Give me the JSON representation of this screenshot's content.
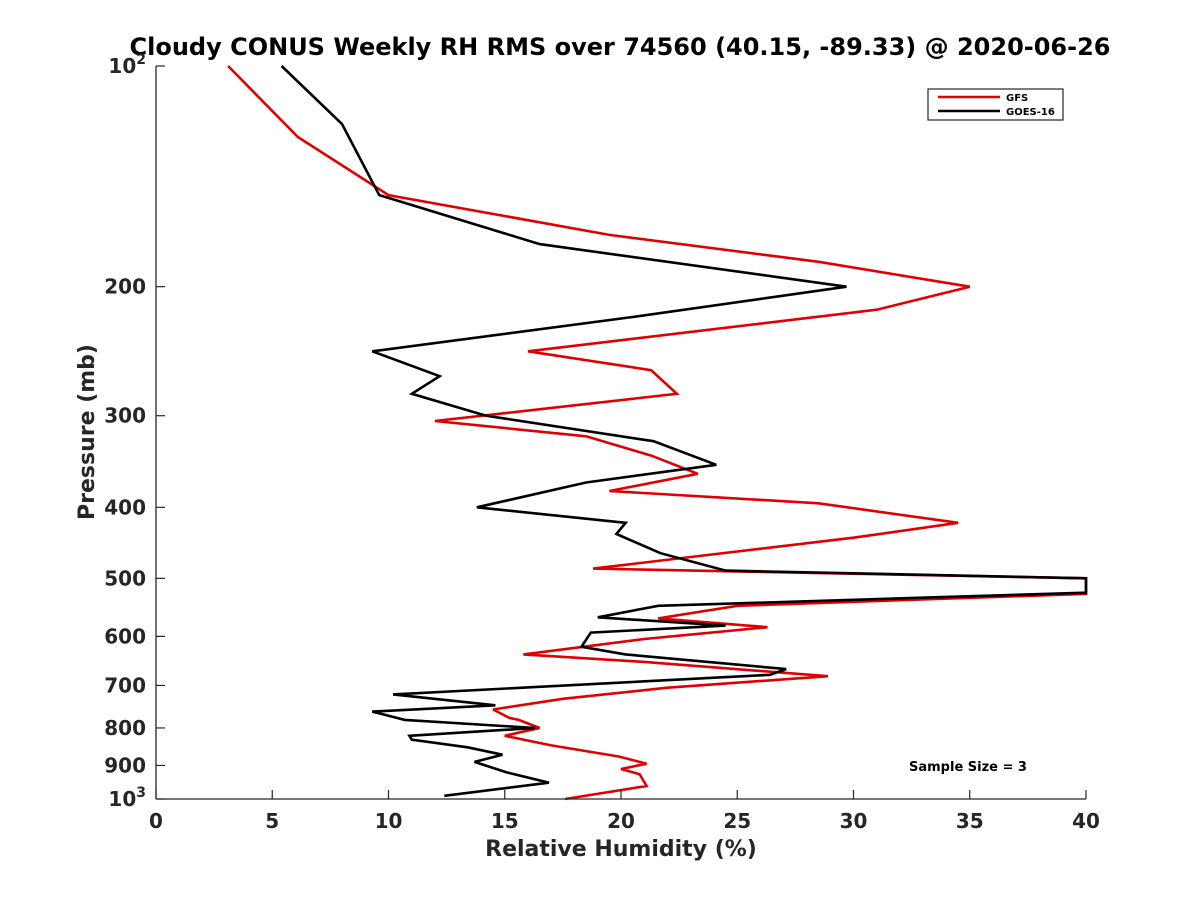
{
  "chart_data": {
    "type": "line",
    "title": "Cloudy CONUS Weekly RH RMS over 74560 (40.15, -89.33) @ 2020-06-26",
    "xlabel": "Relative Humidity (%)",
    "ylabel": "Pressure (mb)",
    "xlim": [
      0,
      40
    ],
    "ylim": [
      100,
      1000
    ],
    "yscale": "log",
    "y_reversed": true,
    "x_ticks": [
      "0",
      "5",
      "10",
      "15",
      "20",
      "25",
      "30",
      "35",
      "40"
    ],
    "y_ticks": [
      {
        "value": 100,
        "base": "10",
        "exp": "2"
      },
      {
        "value": 200,
        "label": "200"
      },
      {
        "value": 300,
        "label": "300"
      },
      {
        "value": 400,
        "label": "400"
      },
      {
        "value": 500,
        "label": "500"
      },
      {
        "value": 600,
        "label": "600"
      },
      {
        "value": 700,
        "label": "700"
      },
      {
        "value": 800,
        "label": "800"
      },
      {
        "value": 900,
        "label": "900"
      },
      {
        "value": 1000,
        "base": "10",
        "exp": "3"
      }
    ],
    "grid": false,
    "legend_position": "top-right",
    "annotation": "Sample Size = 3",
    "series": [
      {
        "name": "GFS",
        "color": "#e00000",
        "points": [
          [
            3.1,
            100
          ],
          [
            6.1,
            125
          ],
          [
            10.0,
            150
          ],
          [
            19.5,
            170
          ],
          [
            28.5,
            185
          ],
          [
            35.0,
            200
          ],
          [
            31.0,
            215
          ],
          [
            16.0,
            245
          ],
          [
            21.3,
            260
          ],
          [
            22.4,
            280
          ],
          [
            12.0,
            305
          ],
          [
            18.5,
            320
          ],
          [
            21.3,
            340
          ],
          [
            23.3,
            360
          ],
          [
            19.5,
            380
          ],
          [
            28.5,
            395
          ],
          [
            34.5,
            420
          ],
          [
            30.0,
            440
          ],
          [
            18.8,
            485
          ],
          [
            40.0,
            500
          ],
          [
            40.0,
            525
          ],
          [
            25.0,
            545
          ],
          [
            21.6,
            567
          ],
          [
            26.3,
            583
          ],
          [
            21.0,
            605
          ],
          [
            15.8,
            635
          ],
          [
            21.0,
            650
          ],
          [
            28.9,
            680
          ],
          [
            22.0,
            705
          ],
          [
            17.5,
            730
          ],
          [
            14.5,
            755
          ],
          [
            15.2,
            775
          ],
          [
            15.6,
            780
          ],
          [
            16.5,
            800
          ],
          [
            15.0,
            820
          ],
          [
            17.0,
            845
          ],
          [
            19.9,
            875
          ],
          [
            21.1,
            895
          ],
          [
            20.0,
            910
          ],
          [
            20.8,
            925
          ],
          [
            21.1,
            960
          ],
          [
            17.6,
            1000
          ]
        ]
      },
      {
        "name": "GOES-16",
        "color": "#000000",
        "points": [
          [
            5.4,
            100
          ],
          [
            8.0,
            120
          ],
          [
            9.6,
            150
          ],
          [
            16.5,
            175
          ],
          [
            29.7,
            200
          ],
          [
            20.5,
            220
          ],
          [
            9.3,
            245
          ],
          [
            12.2,
            265
          ],
          [
            11.0,
            280
          ],
          [
            14.2,
            300
          ],
          [
            21.4,
            325
          ],
          [
            24.1,
            350
          ],
          [
            18.5,
            370
          ],
          [
            13.8,
            400
          ],
          [
            20.2,
            420
          ],
          [
            19.8,
            435
          ],
          [
            21.7,
            462
          ],
          [
            24.5,
            488
          ],
          [
            40.0,
            500
          ],
          [
            40.0,
            523
          ],
          [
            21.6,
            545
          ],
          [
            19.0,
            565
          ],
          [
            24.5,
            580
          ],
          [
            18.7,
            593
          ],
          [
            18.3,
            620
          ],
          [
            20.2,
            635
          ],
          [
            27.1,
            665
          ],
          [
            26.4,
            677
          ],
          [
            10.2,
            720
          ],
          [
            14.6,
            745
          ],
          [
            9.3,
            760
          ],
          [
            10.7,
            780
          ],
          [
            16.3,
            800
          ],
          [
            10.9,
            820
          ],
          [
            11.0,
            830
          ],
          [
            13.4,
            850
          ],
          [
            14.9,
            870
          ],
          [
            13.7,
            890
          ],
          [
            15.1,
            920
          ],
          [
            16.9,
            950
          ],
          [
            12.4,
            990
          ]
        ]
      }
    ]
  }
}
